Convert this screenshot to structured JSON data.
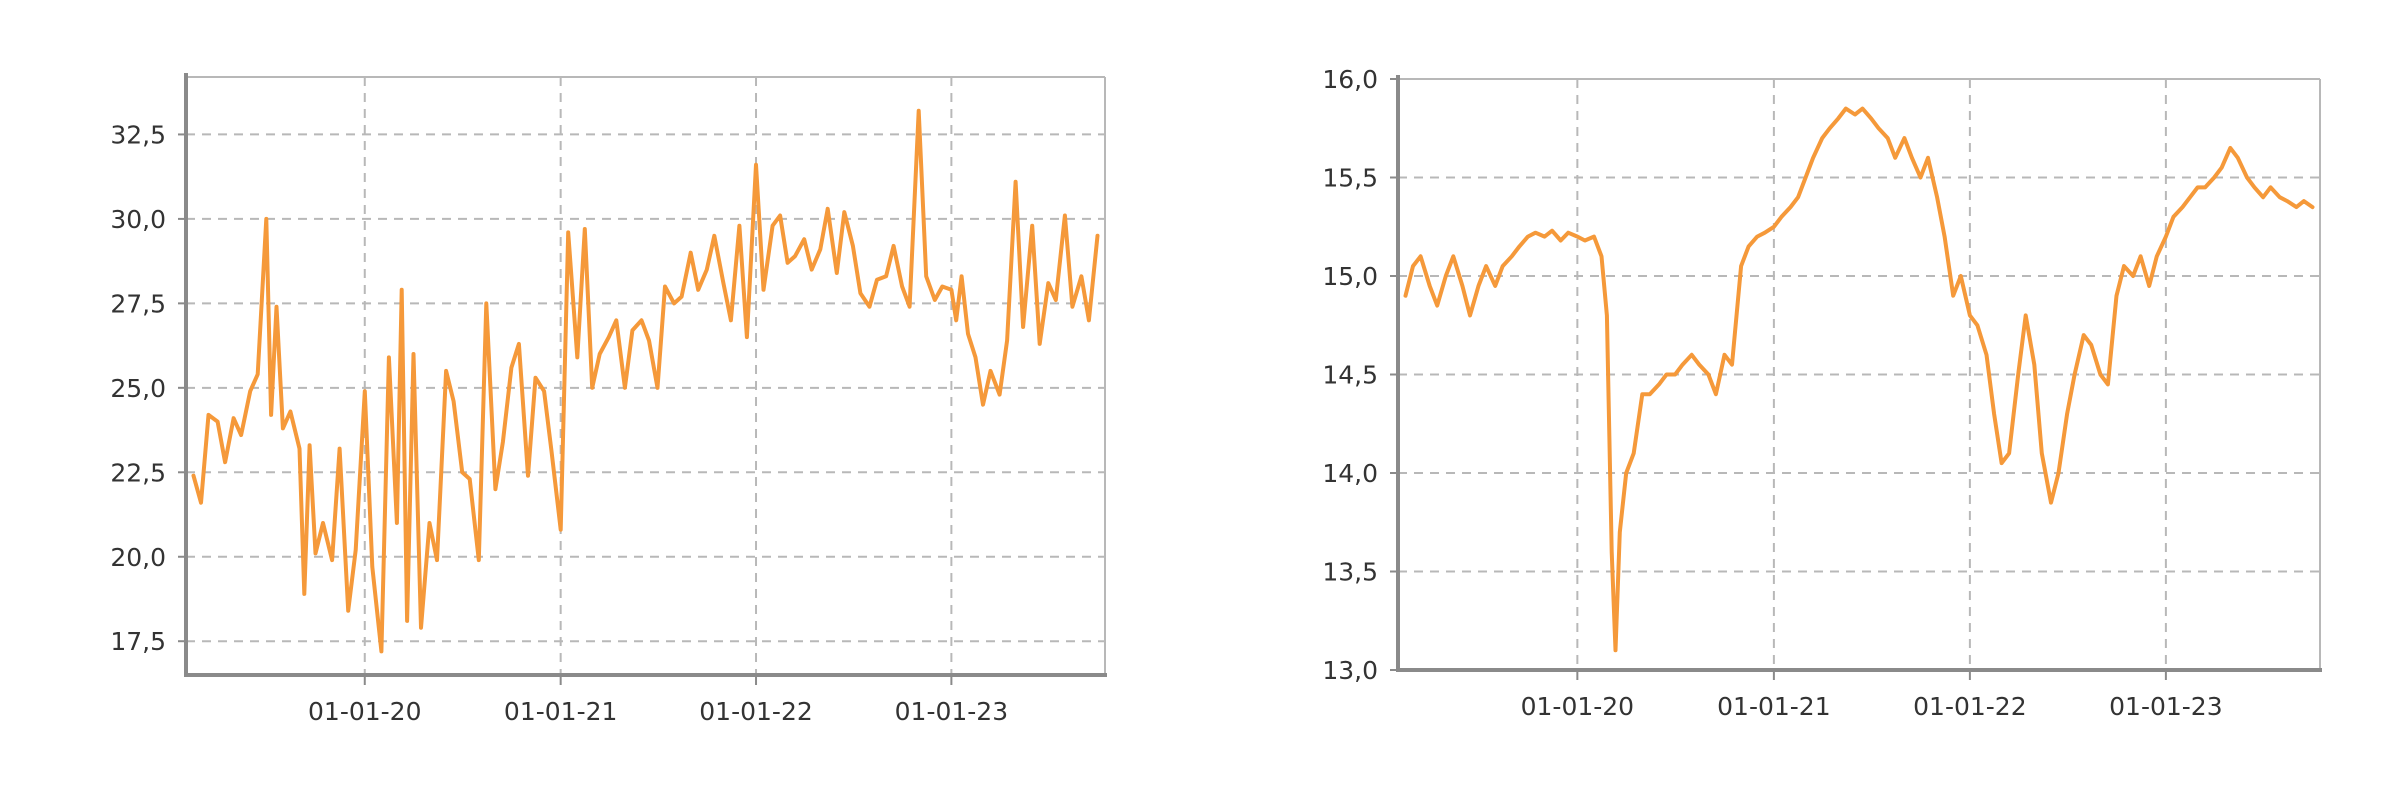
{
  "colors": {
    "series": "#f5993a",
    "axis": "#8a8a8a",
    "grid": "#b8b8b8",
    "text": "#333333"
  },
  "chart_data": [
    {
      "type": "line",
      "title": "",
      "xlabel": "",
      "ylabel": "",
      "grid": true,
      "x_ticks": [
        "01-01-20",
        "01-01-21",
        "01-01-22",
        "01-01-23"
      ],
      "x_tick_dates": [
        "2020-01-01",
        "2021-01-01",
        "2022-01-01",
        "2023-01-01"
      ],
      "xlim": [
        "2019-02-01",
        "2023-10-15"
      ],
      "y_ticks": [
        "17,5",
        "20,0",
        "22,5",
        "25,0",
        "27,5",
        "30,0",
        "32,5"
      ],
      "ylim": [
        16.5,
        34.2
      ],
      "series": [
        {
          "x": [
            "2019-02-15",
            "2019-03-01",
            "2019-03-15",
            "2019-04-01",
            "2019-04-15",
            "2019-05-01",
            "2019-05-15",
            "2019-06-01",
            "2019-06-15",
            "2019-07-01",
            "2019-07-10",
            "2019-07-20",
            "2019-08-01",
            "2019-08-15",
            "2019-09-01",
            "2019-09-10",
            "2019-09-20",
            "2019-10-01",
            "2019-10-15",
            "2019-11-01",
            "2019-11-15",
            "2019-12-01",
            "2019-12-15",
            "2020-01-01",
            "2020-01-15",
            "2020-02-01",
            "2020-02-15",
            "2020-03-01",
            "2020-03-10",
            "2020-03-20",
            "2020-04-01",
            "2020-04-15",
            "2020-05-01",
            "2020-05-15",
            "2020-06-01",
            "2020-06-15",
            "2020-07-01",
            "2020-07-15",
            "2020-08-01",
            "2020-08-15",
            "2020-09-01",
            "2020-09-15",
            "2020-10-01",
            "2020-10-15",
            "2020-11-01",
            "2020-11-15",
            "2020-12-01",
            "2020-12-15",
            "2021-01-01",
            "2021-01-15",
            "2021-02-01",
            "2021-02-15",
            "2021-03-01",
            "2021-03-15",
            "2021-04-01",
            "2021-04-15",
            "2021-05-01",
            "2021-05-15",
            "2021-06-01",
            "2021-06-15",
            "2021-07-01",
            "2021-07-15",
            "2021-08-01",
            "2021-08-15",
            "2021-09-01",
            "2021-09-15",
            "2021-10-01",
            "2021-10-15",
            "2021-11-01",
            "2021-11-15",
            "2021-12-01",
            "2021-12-15",
            "2022-01-01",
            "2022-01-15",
            "2022-02-01",
            "2022-02-15",
            "2022-03-01",
            "2022-03-15",
            "2022-04-01",
            "2022-04-15",
            "2022-05-01",
            "2022-05-15",
            "2022-06-01",
            "2022-06-15",
            "2022-07-01",
            "2022-07-15",
            "2022-08-01",
            "2022-08-15",
            "2022-09-01",
            "2022-09-15",
            "2022-10-01",
            "2022-10-15",
            "2022-11-01",
            "2022-11-15",
            "2022-12-01",
            "2022-12-15",
            "2023-01-01",
            "2023-01-10",
            "2023-01-20",
            "2023-02-01",
            "2023-02-15",
            "2023-03-01",
            "2023-03-15",
            "2023-04-01",
            "2023-04-15",
            "2023-05-01",
            "2023-05-15",
            "2023-06-01",
            "2023-06-15",
            "2023-07-01",
            "2023-07-15",
            "2023-08-01",
            "2023-08-15",
            "2023-09-01",
            "2023-09-15",
            "2023-10-01"
          ],
          "values": [
            22.4,
            21.6,
            24.2,
            24.0,
            22.8,
            24.1,
            23.6,
            24.9,
            25.4,
            30.0,
            24.2,
            27.4,
            23.8,
            24.3,
            23.2,
            18.9,
            23.3,
            20.1,
            21.0,
            19.9,
            23.2,
            18.4,
            20.2,
            24.9,
            19.7,
            17.2,
            25.9,
            21.0,
            27.9,
            18.1,
            26.0,
            17.9,
            21.0,
            19.9,
            25.5,
            24.6,
            22.5,
            22.3,
            19.9,
            27.5,
            22.0,
            23.4,
            25.6,
            26.3,
            22.4,
            25.3,
            24.9,
            23.1,
            20.8,
            29.6,
            25.9,
            29.7,
            25.0,
            26.0,
            26.5,
            27.0,
            25.0,
            26.7,
            27.0,
            26.4,
            25.0,
            28.0,
            27.5,
            27.7,
            29.0,
            27.9,
            28.5,
            29.5,
            28.1,
            27.0,
            29.8,
            26.5,
            31.6,
            27.9,
            29.8,
            30.1,
            28.7,
            28.9,
            29.4,
            28.5,
            29.1,
            30.3,
            28.4,
            30.2,
            29.2,
            27.8,
            27.4,
            28.2,
            28.3,
            29.2,
            28.0,
            27.4,
            33.2,
            28.3,
            27.6,
            28.0,
            27.9,
            27.0,
            28.3,
            26.6,
            25.9,
            24.5,
            25.5,
            24.8,
            26.4,
            31.1,
            26.8,
            29.8,
            26.3,
            28.1,
            27.6,
            30.1,
            27.4,
            28.3,
            27.0,
            29.5
          ]
        }
      ]
    },
    {
      "type": "line",
      "title": "",
      "xlabel": "",
      "ylabel": "",
      "grid": true,
      "x_ticks": [
        "01-01-20",
        "01-01-21",
        "01-01-22",
        "01-01-23"
      ],
      "x_tick_dates": [
        "2020-01-01",
        "2021-01-01",
        "2022-01-01",
        "2023-01-01"
      ],
      "xlim": [
        "2019-02-01",
        "2023-10-15"
      ],
      "y_ticks": [
        "13,0",
        "13,5",
        "14,0",
        "14,5",
        "15,0",
        "15,5",
        "16,0"
      ],
      "ylim": [
        13.0,
        16.0
      ],
      "series": [
        {
          "x": [
            "2019-02-15",
            "2019-03-01",
            "2019-03-15",
            "2019-04-01",
            "2019-04-15",
            "2019-05-01",
            "2019-05-15",
            "2019-06-01",
            "2019-06-15",
            "2019-07-01",
            "2019-07-15",
            "2019-08-01",
            "2019-08-15",
            "2019-09-01",
            "2019-09-15",
            "2019-10-01",
            "2019-10-15",
            "2019-11-01",
            "2019-11-15",
            "2019-12-01",
            "2019-12-15",
            "2020-01-01",
            "2020-01-15",
            "2020-02-01",
            "2020-02-15",
            "2020-02-25",
            "2020-03-05",
            "2020-03-12",
            "2020-03-20",
            "2020-04-01",
            "2020-04-15",
            "2020-05-01",
            "2020-05-15",
            "2020-06-01",
            "2020-06-15",
            "2020-07-01",
            "2020-07-15",
            "2020-08-01",
            "2020-08-15",
            "2020-09-01",
            "2020-09-15",
            "2020-10-01",
            "2020-10-15",
            "2020-11-01",
            "2020-11-15",
            "2020-12-01",
            "2020-12-15",
            "2021-01-01",
            "2021-01-15",
            "2021-02-01",
            "2021-02-15",
            "2021-03-01",
            "2021-03-15",
            "2021-04-01",
            "2021-04-15",
            "2021-05-01",
            "2021-05-15",
            "2021-06-01",
            "2021-06-15",
            "2021-07-01",
            "2021-07-15",
            "2021-08-01",
            "2021-08-15",
            "2021-09-01",
            "2021-09-15",
            "2021-10-01",
            "2021-10-15",
            "2021-11-01",
            "2021-11-15",
            "2021-12-01",
            "2021-12-15",
            "2022-01-01",
            "2022-01-15",
            "2022-02-01",
            "2022-02-15",
            "2022-03-01",
            "2022-03-15",
            "2022-04-01",
            "2022-04-15",
            "2022-05-01",
            "2022-05-15",
            "2022-06-01",
            "2022-06-15",
            "2022-07-01",
            "2022-07-15",
            "2022-08-01",
            "2022-08-15",
            "2022-09-01",
            "2022-09-15",
            "2022-10-01",
            "2022-10-15",
            "2022-11-01",
            "2022-11-15",
            "2022-12-01",
            "2022-12-15",
            "2023-01-01",
            "2023-01-15",
            "2023-02-01",
            "2023-02-15",
            "2023-03-01",
            "2023-03-15",
            "2023-04-01",
            "2023-04-15",
            "2023-05-01",
            "2023-05-15",
            "2023-06-01",
            "2023-06-15",
            "2023-07-01",
            "2023-07-15",
            "2023-08-01",
            "2023-08-15",
            "2023-09-01",
            "2023-09-15",
            "2023-10-01"
          ],
          "values": [
            14.9,
            15.05,
            15.1,
            14.95,
            14.85,
            15.0,
            15.1,
            14.95,
            14.8,
            14.95,
            15.05,
            14.95,
            15.05,
            15.1,
            15.15,
            15.2,
            15.22,
            15.2,
            15.23,
            15.18,
            15.22,
            15.2,
            15.18,
            15.2,
            15.1,
            14.8,
            13.6,
            13.1,
            13.7,
            14.0,
            14.1,
            14.4,
            14.4,
            14.45,
            14.5,
            14.5,
            14.55,
            14.6,
            14.55,
            14.5,
            14.4,
            14.6,
            14.55,
            15.05,
            15.15,
            15.2,
            15.22,
            15.25,
            15.3,
            15.35,
            15.4,
            15.5,
            15.6,
            15.7,
            15.75,
            15.8,
            15.85,
            15.82,
            15.85,
            15.8,
            15.75,
            15.7,
            15.6,
            15.7,
            15.6,
            15.5,
            15.6,
            15.4,
            15.2,
            14.9,
            15.0,
            14.8,
            14.75,
            14.6,
            14.3,
            14.05,
            14.1,
            14.5,
            14.8,
            14.55,
            14.1,
            13.85,
            14.0,
            14.3,
            14.5,
            14.7,
            14.65,
            14.5,
            14.45,
            14.9,
            15.05,
            15.0,
            15.1,
            14.95,
            15.1,
            15.2,
            15.3,
            15.35,
            15.4,
            15.45,
            15.45,
            15.5,
            15.55,
            15.65,
            15.6,
            15.5,
            15.45,
            15.4,
            15.45,
            15.4,
            15.38,
            15.35,
            15.38,
            15.35
          ]
        }
      ]
    }
  ]
}
